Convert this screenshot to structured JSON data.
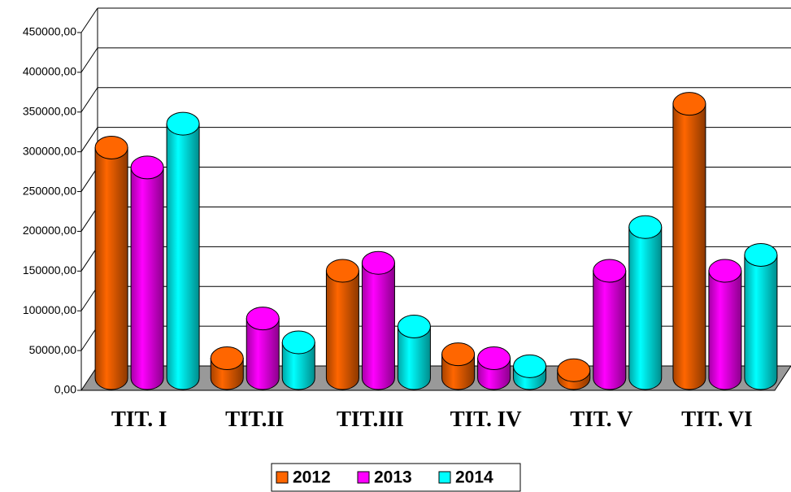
{
  "chart_data": {
    "type": "bar3d",
    "categories": [
      "TIT. I",
      "TIT.II",
      "TIT.III",
      "TIT. IV",
      "TIT. V",
      "TIT. VI"
    ],
    "series": [
      {
        "name": "2012",
        "color": "#ff6600",
        "values": [
          290000,
          25000,
          135000,
          30000,
          10000,
          345000
        ]
      },
      {
        "name": "2013",
        "color": "#ff00ff",
        "values": [
          265000,
          75000,
          145000,
          25000,
          135000,
          135000
        ]
      },
      {
        "name": "2014",
        "color": "#00ffff",
        "values": [
          320000,
          45000,
          65000,
          15000,
          190000,
          155000
        ]
      }
    ],
    "ylim": [
      0,
      450000
    ],
    "yticks": [
      {
        "value": 0,
        "label": "0,00"
      },
      {
        "value": 50000,
        "label": "50000,00"
      },
      {
        "value": 100000,
        "label": "100000,00"
      },
      {
        "value": 150000,
        "label": "150000,00"
      },
      {
        "value": 200000,
        "label": "200000,00"
      },
      {
        "value": 250000,
        "label": "250000,00"
      },
      {
        "value": 300000,
        "label": "300000,00"
      },
      {
        "value": 350000,
        "label": "350000,00"
      },
      {
        "value": 400000,
        "label": "400000,00"
      },
      {
        "value": 450000,
        "label": "450000,00"
      }
    ],
    "grid": true,
    "legend": "bottom"
  }
}
